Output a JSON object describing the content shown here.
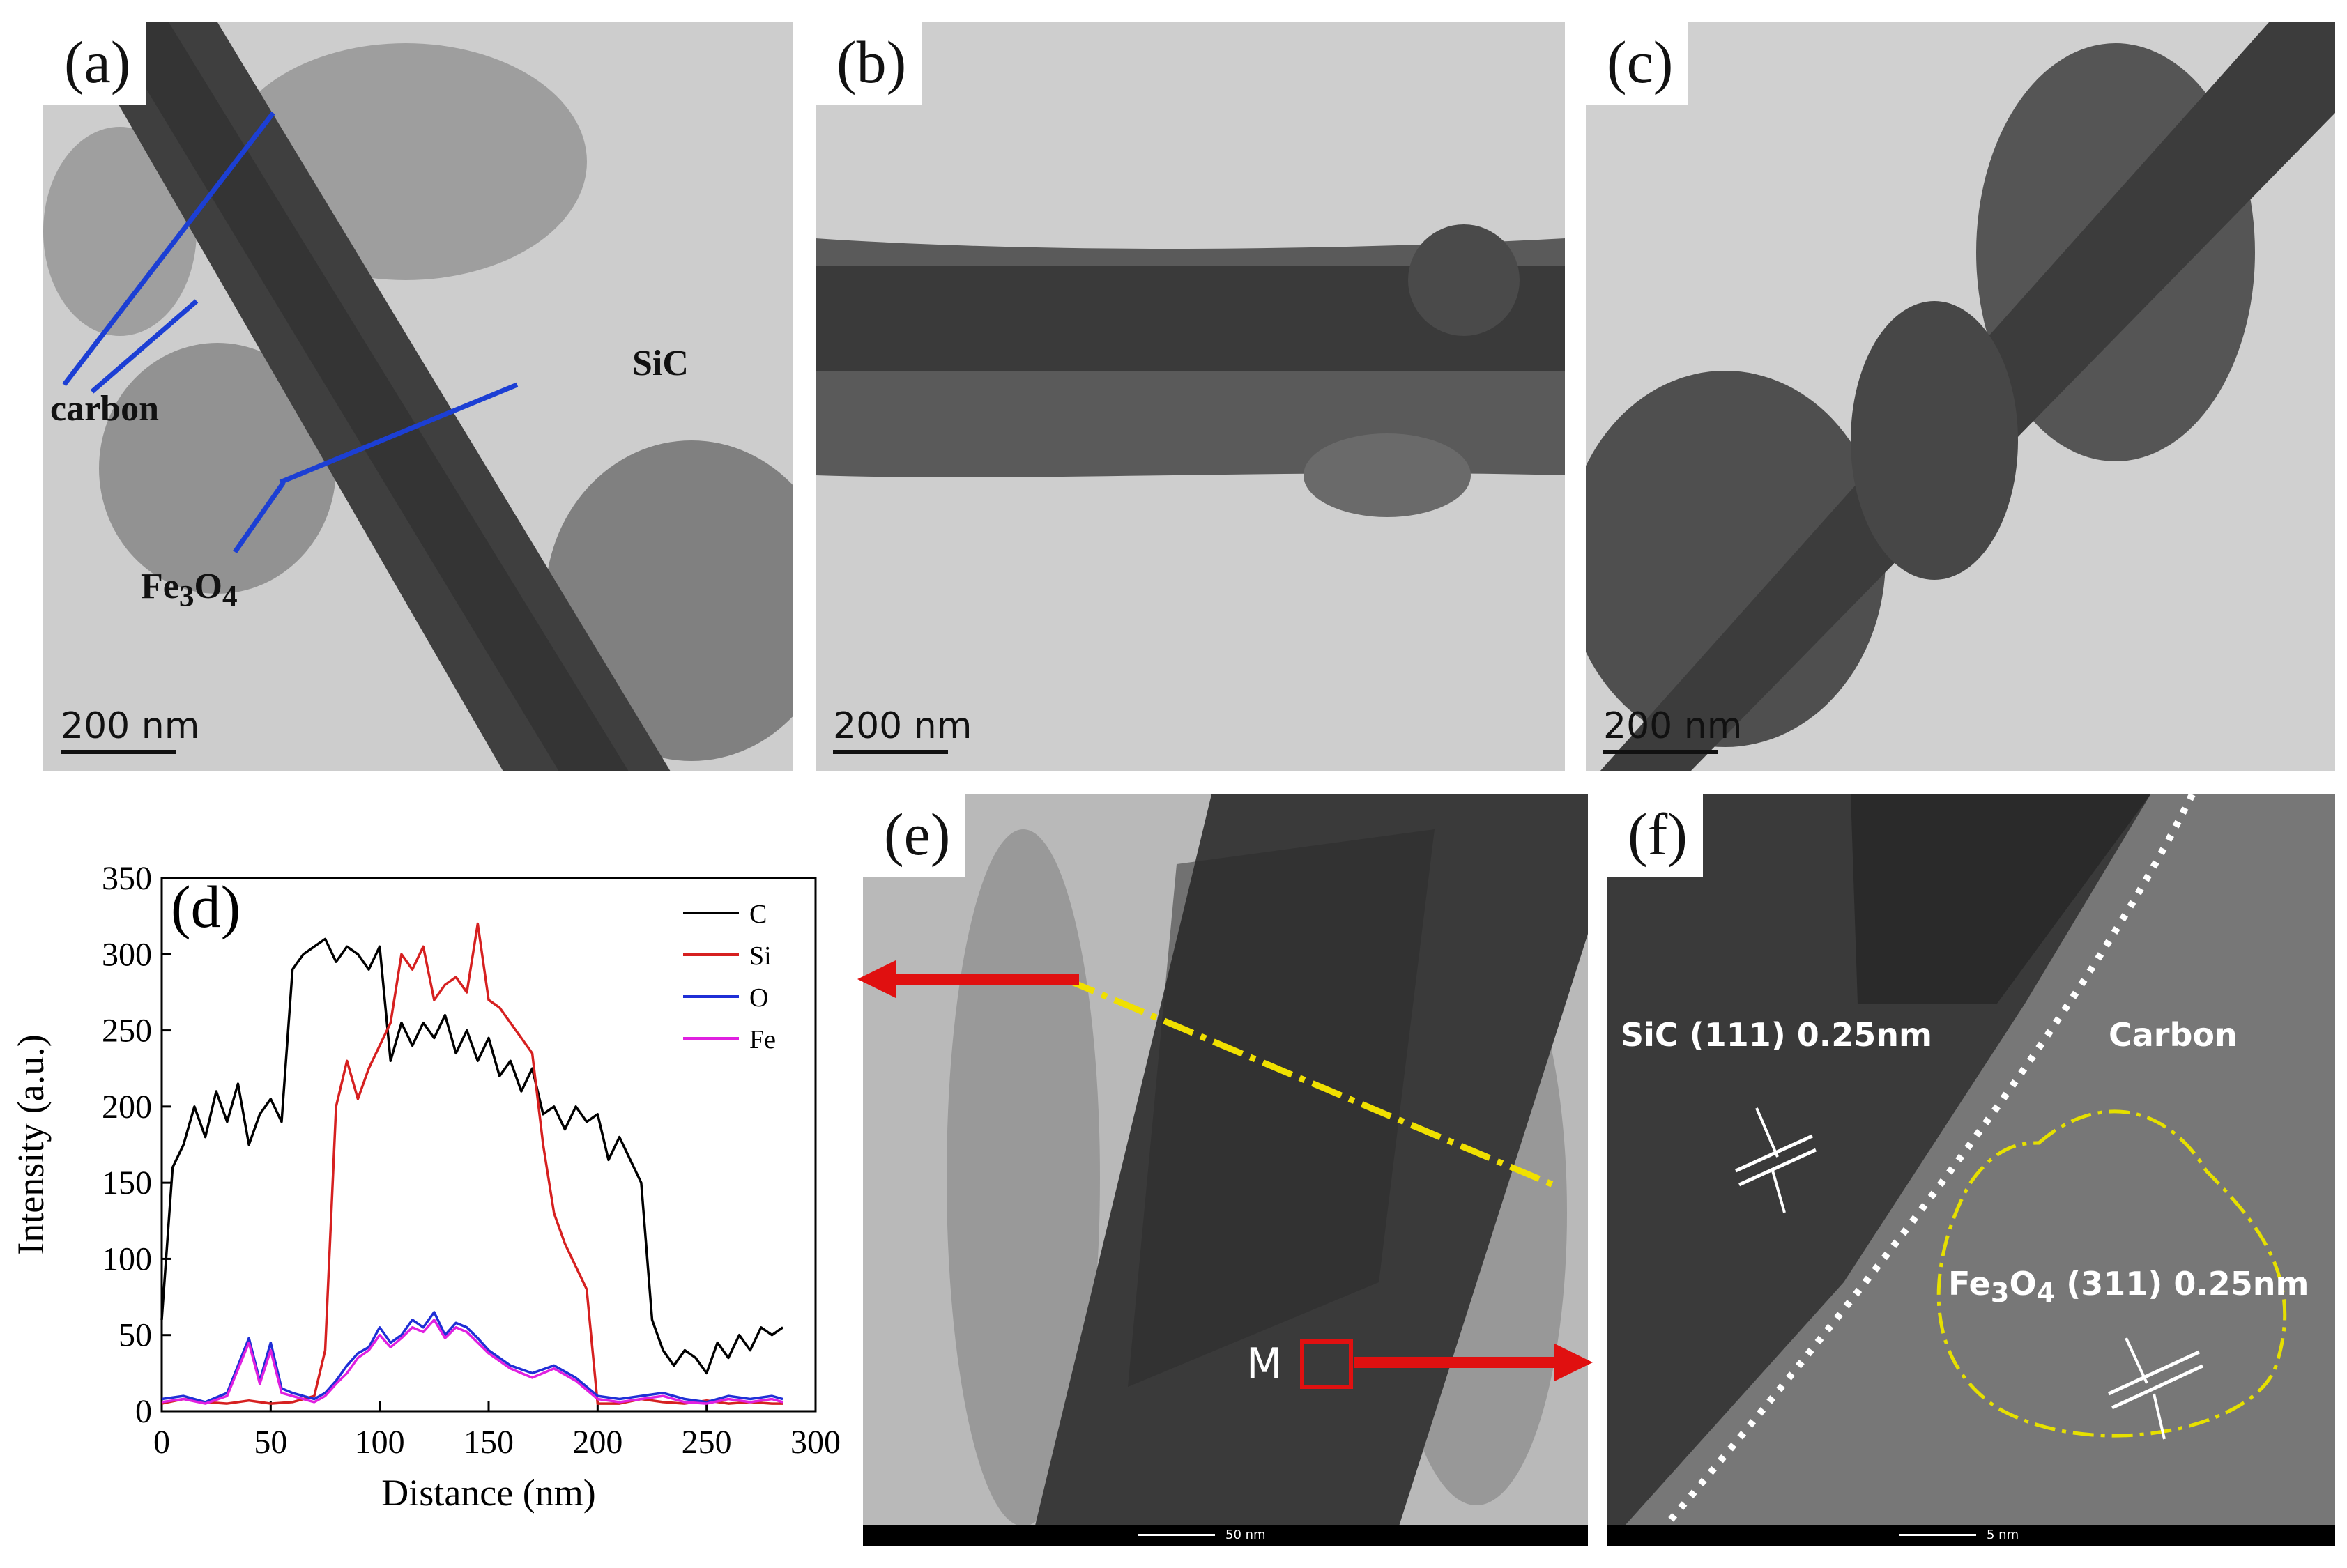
{
  "panels": {
    "a": {
      "label": "(a)",
      "scale": "200 nm",
      "annotations": {
        "carbon": "carbon",
        "sic": "SiC",
        "fe3o4": "Fe3O4"
      }
    },
    "b": {
      "label": "(b)",
      "scale": "200 nm"
    },
    "c": {
      "label": "(c)",
      "scale": "200 nm"
    },
    "d": {
      "label": "(d)"
    },
    "e": {
      "label": "(e)",
      "marker": "M",
      "footer_scale": "50 nm"
    },
    "f": {
      "label": "(f)",
      "footer_scale": "5 nm",
      "annotations": {
        "sic": "SiC (111)  0.25nm",
        "carbon": "Carbon",
        "fe3o4": "Fe3O4 (311)  0.25nm"
      }
    }
  },
  "chart_data": {
    "type": "line",
    "xlabel": "Distance (nm)",
    "ylabel": "Intensity (a.u.)",
    "xlim": [
      0,
      300
    ],
    "ylim": [
      0,
      350
    ],
    "xticks": [
      0,
      50,
      100,
      150,
      200,
      250,
      300
    ],
    "yticks": [
      0,
      50,
      100,
      150,
      200,
      250,
      300,
      350
    ],
    "legend_position": "top-right",
    "series": [
      {
        "name": "C",
        "color": "#000000",
        "x": [
          0,
          5,
          10,
          15,
          20,
          25,
          30,
          35,
          40,
          45,
          50,
          55,
          60,
          65,
          70,
          75,
          80,
          85,
          90,
          95,
          100,
          105,
          110,
          115,
          120,
          125,
          130,
          135,
          140,
          145,
          150,
          155,
          160,
          165,
          170,
          175,
          180,
          185,
          190,
          195,
          200,
          205,
          210,
          215,
          220,
          225,
          230,
          235,
          240,
          245,
          250,
          255,
          260,
          265,
          270,
          275,
          280,
          285
        ],
        "y": [
          60,
          160,
          175,
          200,
          180,
          210,
          190,
          215,
          175,
          195,
          205,
          190,
          290,
          300,
          305,
          310,
          295,
          305,
          300,
          290,
          305,
          230,
          255,
          240,
          255,
          245,
          260,
          235,
          250,
          230,
          245,
          220,
          230,
          210,
          225,
          195,
          200,
          185,
          200,
          190,
          195,
          165,
          180,
          165,
          150,
          60,
          40,
          30,
          40,
          35,
          25,
          45,
          35,
          50,
          40,
          55,
          50,
          55
        ]
      },
      {
        "name": "Si",
        "color": "#d62020",
        "x": [
          0,
          10,
          20,
          30,
          40,
          50,
          60,
          70,
          75,
          80,
          85,
          90,
          95,
          100,
          105,
          110,
          115,
          120,
          125,
          130,
          135,
          140,
          145,
          150,
          155,
          160,
          165,
          170,
          175,
          180,
          185,
          190,
          195,
          200,
          210,
          220,
          230,
          240,
          250,
          260,
          270,
          280,
          285
        ],
        "y": [
          5,
          8,
          6,
          5,
          7,
          5,
          6,
          10,
          40,
          200,
          230,
          205,
          225,
          240,
          255,
          300,
          290,
          305,
          270,
          280,
          285,
          275,
          320,
          270,
          265,
          255,
          245,
          235,
          175,
          130,
          110,
          95,
          80,
          5,
          5,
          8,
          6,
          5,
          7,
          5,
          6,
          5,
          5
        ]
      },
      {
        "name": "O",
        "color": "#1f2fd6",
        "x": [
          0,
          10,
          20,
          30,
          40,
          45,
          50,
          55,
          60,
          65,
          70,
          75,
          80,
          85,
          90,
          95,
          100,
          105,
          110,
          115,
          120,
          125,
          130,
          135,
          140,
          145,
          150,
          160,
          170,
          180,
          190,
          200,
          210,
          220,
          230,
          240,
          250,
          260,
          270,
          280,
          285
        ],
        "y": [
          8,
          10,
          6,
          12,
          48,
          20,
          45,
          15,
          12,
          10,
          8,
          12,
          20,
          30,
          38,
          42,
          55,
          45,
          50,
          60,
          55,
          65,
          50,
          58,
          55,
          48,
          40,
          30,
          25,
          30,
          22,
          10,
          8,
          10,
          12,
          8,
          6,
          10,
          8,
          10,
          8
        ]
      },
      {
        "name": "Fe",
        "color": "#e020e0",
        "x": [
          0,
          10,
          20,
          30,
          40,
          45,
          50,
          55,
          60,
          65,
          70,
          75,
          80,
          85,
          90,
          95,
          100,
          105,
          110,
          115,
          120,
          125,
          130,
          135,
          140,
          145,
          150,
          160,
          170,
          180,
          190,
          200,
          210,
          220,
          230,
          240,
          250,
          260,
          270,
          280,
          285
        ],
        "y": [
          6,
          8,
          5,
          10,
          45,
          18,
          40,
          12,
          10,
          8,
          6,
          10,
          18,
          25,
          35,
          40,
          50,
          42,
          48,
          55,
          52,
          60,
          48,
          55,
          52,
          45,
          38,
          28,
          22,
          28,
          20,
          8,
          6,
          8,
          10,
          6,
          5,
          8,
          6,
          8,
          6
        ]
      }
    ]
  }
}
